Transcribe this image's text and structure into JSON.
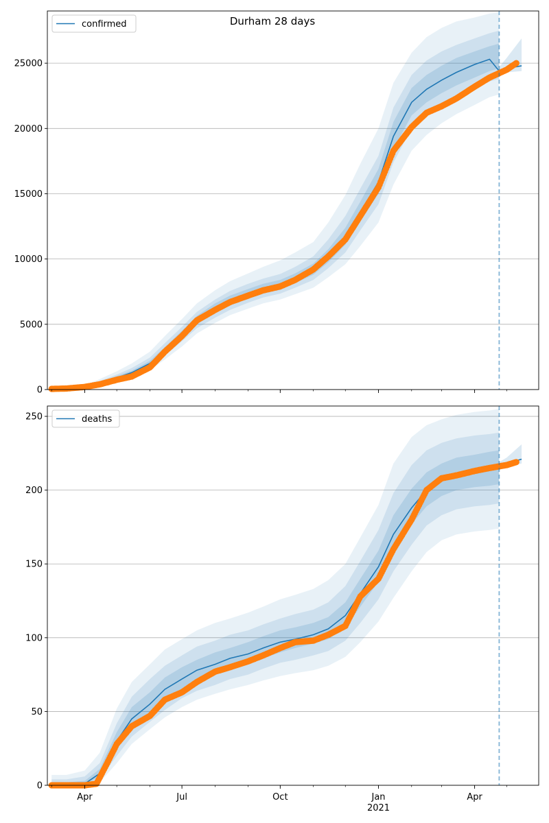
{
  "title": "Durham 28 days",
  "chart_data": [
    {
      "type": "line",
      "panel": "top",
      "title": "Durham 28 days",
      "xlabel": "",
      "ylabel": "",
      "ylim": [
        0,
        29000
      ],
      "yticks": [
        0,
        5000,
        10000,
        15000,
        20000,
        25000
      ],
      "grid": "y",
      "legend": {
        "label": "confirmed",
        "placement": "top-left"
      },
      "forecast_start": "2021-04-24",
      "series": [
        {
          "name": "confirmed",
          "role": "model median",
          "color": "#1f77b4",
          "x": [
            "2020-03-01",
            "2020-03-15",
            "2020-04-01",
            "2020-04-15",
            "2020-05-01",
            "2020-05-15",
            "2020-06-01",
            "2020-06-15",
            "2020-07-01",
            "2020-07-15",
            "2020-08-01",
            "2020-08-15",
            "2020-09-01",
            "2020-09-15",
            "2020-10-01",
            "2020-10-15",
            "2020-11-01",
            "2020-11-15",
            "2020-12-01",
            "2020-12-15",
            "2021-01-01",
            "2021-01-15",
            "2021-02-01",
            "2021-02-15",
            "2021-03-01",
            "2021-03-15",
            "2021-04-01",
            "2021-04-15",
            "2021-04-24",
            "2021-05-01",
            "2021-05-15"
          ],
          "values": [
            50,
            80,
            200,
            500,
            900,
            1300,
            2000,
            3000,
            4200,
            5300,
            6200,
            6800,
            7300,
            7700,
            8000,
            8500,
            9200,
            10200,
            11700,
            13600,
            15900,
            19400,
            22000,
            23000,
            23700,
            24300,
            24900,
            25300,
            24400,
            24600,
            24800
          ]
        },
        {
          "name": "",
          "role": "observed",
          "color": "#ff7f0e",
          "x": [
            "2020-03-01",
            "2020-03-15",
            "2020-04-01",
            "2020-04-15",
            "2020-05-01",
            "2020-05-15",
            "2020-06-01",
            "2020-06-15",
            "2020-07-01",
            "2020-07-15",
            "2020-08-01",
            "2020-08-15",
            "2020-09-01",
            "2020-09-15",
            "2020-10-01",
            "2020-10-15",
            "2020-11-01",
            "2020-11-15",
            "2020-12-01",
            "2020-12-15",
            "2021-01-01",
            "2021-01-15",
            "2021-02-01",
            "2021-02-15",
            "2021-03-01",
            "2021-03-15",
            "2021-04-01",
            "2021-04-15",
            "2021-05-01",
            "2021-05-10"
          ],
          "values": [
            50,
            80,
            200,
            400,
            750,
            1000,
            1700,
            2900,
            4100,
            5300,
            6100,
            6700,
            7200,
            7600,
            7900,
            8400,
            9200,
            10200,
            11500,
            13300,
            15500,
            18300,
            20100,
            21200,
            21700,
            22300,
            23200,
            23900,
            24500,
            25000
          ]
        }
      ],
      "bands": [
        {
          "name": "",
          "x": [
            "2020-03-01",
            "2020-03-15",
            "2020-04-01",
            "2020-04-15",
            "2020-05-01",
            "2020-05-15",
            "2020-06-01",
            "2020-06-15",
            "2020-07-01",
            "2020-07-15",
            "2020-08-01",
            "2020-08-15",
            "2020-09-01",
            "2020-09-15",
            "2020-10-01",
            "2020-10-15",
            "2020-11-01",
            "2020-11-15",
            "2020-12-01",
            "2020-12-15",
            "2021-01-01",
            "2021-01-15",
            "2021-02-01",
            "2021-02-15",
            "2021-03-01",
            "2021-03-15",
            "2021-04-01",
            "2021-04-15",
            "2021-04-24"
          ],
          "lower": [
            20,
            40,
            120,
            300,
            600,
            900,
            1500,
            2300,
            3300,
            4300,
            5100,
            5700,
            6200,
            6600,
            6900,
            7300,
            7800,
            8600,
            9600,
            11000,
            12800,
            15700,
            18300,
            19500,
            20400,
            21100,
            21800,
            22400,
            22600
          ],
          "upper": [
            100,
            150,
            350,
            800,
            1400,
            2000,
            2900,
            4100,
            5400,
            6600,
            7600,
            8300,
            8900,
            9400,
            9900,
            10500,
            11300,
            12800,
            14900,
            17300,
            20000,
            23500,
            25800,
            27000,
            27700,
            28200,
            28500,
            28800,
            28900
          ]
        },
        {
          "name": "",
          "x": [
            "2020-03-01",
            "2020-03-15",
            "2020-04-01",
            "2020-04-15",
            "2020-05-01",
            "2020-05-15",
            "2020-06-01",
            "2020-06-15",
            "2020-07-01",
            "2020-07-15",
            "2020-08-01",
            "2020-08-15",
            "2020-09-01",
            "2020-09-15",
            "2020-10-01",
            "2020-10-15",
            "2020-11-01",
            "2020-11-15",
            "2020-12-01",
            "2020-12-15",
            "2021-01-01",
            "2021-01-15",
            "2021-02-01",
            "2021-02-15",
            "2021-03-01",
            "2021-03-15",
            "2021-04-01",
            "2021-04-15",
            "2021-04-24"
          ],
          "lower": [
            30,
            55,
            150,
            380,
            720,
            1050,
            1700,
            2600,
            3700,
            4700,
            5500,
            6100,
            6650,
            7050,
            7350,
            7800,
            8400,
            9300,
            10500,
            12200,
            14200,
            17400,
            20000,
            21000,
            21800,
            22400,
            23100,
            23600,
            23800
          ],
          "upper": [
            75,
            120,
            280,
            650,
            1150,
            1650,
            2450,
            3550,
            4800,
            5950,
            6900,
            7550,
            8100,
            8500,
            8850,
            9400,
            10200,
            11500,
            13300,
            15400,
            17900,
            21600,
            24100,
            25200,
            25900,
            26400,
            26900,
            27300,
            27500
          ]
        },
        {
          "name": "",
          "x": [
            "2020-03-01",
            "2020-03-15",
            "2020-04-01",
            "2020-04-15",
            "2020-05-01",
            "2020-05-15",
            "2020-06-01",
            "2020-06-15",
            "2020-07-01",
            "2020-07-15",
            "2020-08-01",
            "2020-08-15",
            "2020-09-01",
            "2020-09-15",
            "2020-10-01",
            "2020-10-15",
            "2020-11-01",
            "2020-11-15",
            "2020-12-01",
            "2020-12-15",
            "2021-01-01",
            "2021-01-15",
            "2021-02-01",
            "2021-02-15",
            "2021-03-01",
            "2021-03-15",
            "2021-04-01",
            "2021-04-15",
            "2021-04-24"
          ],
          "lower": [
            40,
            65,
            170,
            430,
            800,
            1170,
            1850,
            2800,
            3950,
            5000,
            5850,
            6450,
            6950,
            7350,
            7650,
            8150,
            8800,
            9750,
            11100,
            12900,
            15000,
            18400,
            21000,
            22000,
            22700,
            23300,
            23900,
            24400,
            24600
          ],
          "upper": [
            60,
            100,
            240,
            580,
            1030,
            1450,
            2200,
            3250,
            4500,
            5650,
            6600,
            7200,
            7700,
            8100,
            8400,
            8900,
            9650,
            10750,
            12400,
            14400,
            16900,
            20500,
            23100,
            24100,
            24800,
            25400,
            25900,
            26300,
            26500
          ]
        },
        {
          "name": "",
          "x": [
            "2021-04-24",
            "2021-05-01",
            "2021-05-15"
          ],
          "lower": [
            24200,
            24300,
            24400
          ],
          "upper": [
            24700,
            25400,
            26900
          ]
        }
      ],
      "x_ticks": [
        {
          "date": "2020-04-01",
          "label": "Apr"
        },
        {
          "date": "2020-07-01",
          "label": "Jul"
        },
        {
          "date": "2020-10-01",
          "label": "Oct"
        },
        {
          "date": "2021-01-01",
          "label": "Jan"
        },
        {
          "date": "2021-04-01",
          "label": "Apr"
        }
      ]
    },
    {
      "type": "line",
      "panel": "bottom",
      "title": "",
      "xlabel": "",
      "ylabel": "",
      "ylim": [
        0,
        257
      ],
      "yticks": [
        0,
        50,
        100,
        150,
        200,
        250
      ],
      "grid": "y",
      "legend": {
        "label": "deaths",
        "placement": "top-left"
      },
      "forecast_start": "2021-04-24",
      "series": [
        {
          "name": "deaths",
          "role": "model median",
          "color": "#1f77b4",
          "x": [
            "2020-03-01",
            "2020-03-15",
            "2020-04-01",
            "2020-04-15",
            "2020-05-01",
            "2020-05-15",
            "2020-06-01",
            "2020-06-15",
            "2020-07-01",
            "2020-07-15",
            "2020-08-01",
            "2020-08-15",
            "2020-09-01",
            "2020-09-15",
            "2020-10-01",
            "2020-10-15",
            "2020-11-01",
            "2020-11-15",
            "2020-12-01",
            "2020-12-15",
            "2021-01-01",
            "2021-01-15",
            "2021-02-01",
            "2021-02-15",
            "2021-03-01",
            "2021-03-15",
            "2021-04-01",
            "2021-04-15",
            "2021-04-24",
            "2021-05-01",
            "2021-05-15"
          ],
          "values": [
            0,
            0,
            1,
            8,
            30,
            45,
            55,
            65,
            72,
            78,
            82,
            86,
            89,
            93,
            97,
            99,
            102,
            106,
            115,
            130,
            148,
            170,
            188,
            200,
            207,
            211,
            213,
            215,
            216,
            218,
            221
          ]
        },
        {
          "name": "",
          "role": "observed",
          "color": "#ff7f0e",
          "x": [
            "2020-03-01",
            "2020-03-15",
            "2020-04-01",
            "2020-04-12",
            "2020-04-22",
            "2020-05-01",
            "2020-05-15",
            "2020-06-01",
            "2020-06-15",
            "2020-07-01",
            "2020-07-15",
            "2020-08-01",
            "2020-08-15",
            "2020-09-01",
            "2020-09-15",
            "2020-10-01",
            "2020-10-15",
            "2020-11-01",
            "2020-11-15",
            "2020-12-01",
            "2020-12-15",
            "2021-01-01",
            "2021-01-15",
            "2021-02-01",
            "2021-02-15",
            "2021-03-01",
            "2021-03-15",
            "2021-04-01",
            "2021-04-15",
            "2021-05-01",
            "2021-05-10"
          ],
          "values": [
            0,
            0,
            0,
            1,
            15,
            28,
            40,
            47,
            58,
            63,
            70,
            77,
            80,
            84,
            88,
            93,
            97,
            98,
            102,
            108,
            128,
            140,
            160,
            180,
            200,
            208,
            210,
            213,
            215,
            217,
            219
          ]
        }
      ],
      "bands": [
        {
          "name": "",
          "x": [
            "2020-03-01",
            "2020-03-15",
            "2020-04-01",
            "2020-04-15",
            "2020-05-01",
            "2020-05-15",
            "2020-06-01",
            "2020-06-15",
            "2020-07-01",
            "2020-07-15",
            "2020-08-01",
            "2020-08-15",
            "2020-09-01",
            "2020-09-15",
            "2020-10-01",
            "2020-10-15",
            "2020-11-01",
            "2020-11-15",
            "2020-12-01",
            "2020-12-15",
            "2021-01-01",
            "2021-01-15",
            "2021-02-01",
            "2021-02-15",
            "2021-03-01",
            "2021-03-15",
            "2021-04-01",
            "2021-04-15",
            "2021-04-24"
          ],
          "lower": [
            0,
            0,
            0,
            2,
            15,
            28,
            38,
            46,
            53,
            58,
            62,
            65,
            68,
            71,
            74,
            76,
            78,
            81,
            87,
            97,
            111,
            127,
            145,
            158,
            166,
            170,
            172,
            173,
            174
          ],
          "upper": [
            7,
            7,
            10,
            22,
            52,
            70,
            82,
            92,
            99,
            105,
            110,
            113,
            117,
            121,
            126,
            129,
            133,
            139,
            150,
            168,
            190,
            218,
            236,
            244,
            248,
            251,
            253,
            254,
            255
          ]
        },
        {
          "name": "",
          "x": [
            "2020-03-01",
            "2020-03-15",
            "2020-04-01",
            "2020-04-15",
            "2020-05-01",
            "2020-05-15",
            "2020-06-01",
            "2020-06-15",
            "2020-07-01",
            "2020-07-15",
            "2020-08-01",
            "2020-08-15",
            "2020-09-01",
            "2020-09-15",
            "2020-10-01",
            "2020-10-15",
            "2020-11-01",
            "2020-11-15",
            "2020-12-01",
            "2020-12-15",
            "2021-01-01",
            "2021-01-15",
            "2021-02-01",
            "2021-02-15",
            "2021-03-01",
            "2021-03-15",
            "2021-04-01",
            "2021-04-15",
            "2021-04-24"
          ],
          "lower": [
            0,
            0,
            0,
            4,
            20,
            33,
            43,
            51,
            59,
            64,
            68,
            72,
            75,
            79,
            83,
            85,
            88,
            91,
            98,
            110,
            126,
            145,
            163,
            176,
            183,
            187,
            189,
            190,
            191
          ],
          "upper": [
            4,
            4,
            6,
            15,
            42,
            60,
            72,
            81,
            88,
            94,
            98,
            102,
            105,
            109,
            113,
            116,
            119,
            124,
            135,
            152,
            173,
            198,
            217,
            227,
            232,
            235,
            237,
            238,
            239
          ]
        },
        {
          "name": "",
          "x": [
            "2020-03-01",
            "2020-03-15",
            "2020-04-01",
            "2020-04-15",
            "2020-05-01",
            "2020-05-15",
            "2020-06-01",
            "2020-06-15",
            "2020-07-01",
            "2020-07-15",
            "2020-08-01",
            "2020-08-15",
            "2020-09-01",
            "2020-09-15",
            "2020-10-01",
            "2020-10-15",
            "2020-11-01",
            "2020-11-15",
            "2020-12-01",
            "2020-12-15",
            "2021-01-01",
            "2021-01-15",
            "2021-02-01",
            "2021-02-15",
            "2021-03-01",
            "2021-03-15",
            "2021-04-01",
            "2021-04-15",
            "2021-04-24"
          ],
          "lower": [
            0,
            0,
            0,
            6,
            25,
            38,
            49,
            58,
            65,
            71,
            75,
            79,
            82,
            86,
            90,
            93,
            96,
            99,
            107,
            121,
            138,
            158,
            177,
            189,
            196,
            200,
            202,
            203,
            204
          ],
          "upper": [
            2,
            2,
            3,
            11,
            36,
            53,
            63,
            73,
            80,
            85,
            90,
            93,
            97,
            101,
            105,
            107,
            110,
            114,
            124,
            140,
            159,
            183,
            201,
            212,
            218,
            222,
            224,
            226,
            227
          ]
        },
        {
          "name": "",
          "x": [
            "2021-04-24",
            "2021-05-01",
            "2021-05-15"
          ],
          "lower": [
            214,
            216,
            218
          ],
          "upper": [
            219,
            222,
            231
          ]
        }
      ],
      "x_ticks": [
        {
          "date": "2020-04-01",
          "label": "Apr"
        },
        {
          "date": "2020-07-01",
          "label": "Jul"
        },
        {
          "date": "2020-10-01",
          "label": "Oct"
        },
        {
          "date": "2021-01-01",
          "label": "Jan"
        },
        {
          "date": "2021-04-01",
          "label": "Apr"
        }
      ],
      "x_year_label": {
        "date": "2021-01-01",
        "label": "2021"
      }
    }
  ]
}
